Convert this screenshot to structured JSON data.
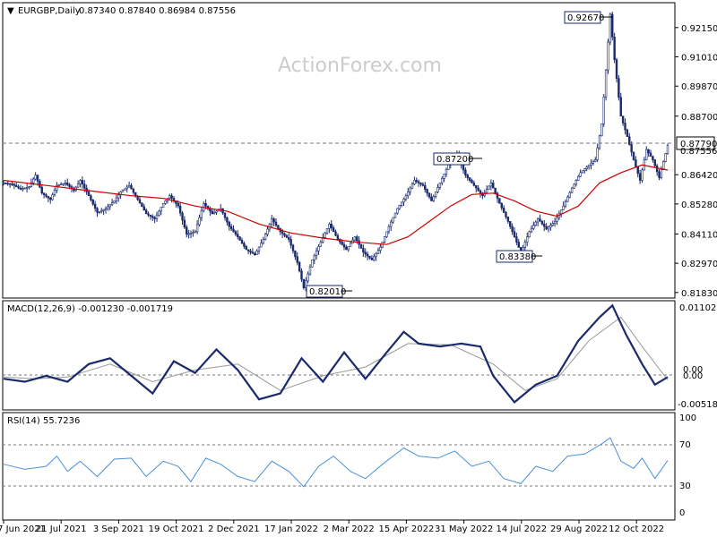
{
  "watermark": "ActionForex.com",
  "header": {
    "symbol": "EURGBP,Daily",
    "ohlc": "0.87340 0.87840 0.86984 0.87556"
  },
  "price_labels": {
    "current_line": "0.87790",
    "current_close": "0.87556"
  },
  "callouts": {
    "peak": "0.92670",
    "mid": "0.87200",
    "low1": "0.82010",
    "low2": "0.83380"
  },
  "macd": {
    "label": "MACD(12,26,9) -0.001230 -0.001719",
    "ticks": [
      "0.011023",
      "0.00",
      "0.00",
      "-0.005182"
    ]
  },
  "rsi": {
    "label": "RSI(14) 55.7236",
    "ticks": [
      "100",
      "70",
      "30",
      "0"
    ]
  },
  "colors": {
    "candles": "#1a2a6c",
    "ma": "#cc0000",
    "macd_main": "#1a2a6c",
    "macd_signal": "#999999",
    "rsi": "#4a90d9",
    "grid_dash": "#777777"
  },
  "chart_data": [
    {
      "type": "candlestick",
      "title": "EURGBP,Daily",
      "y_ticks": [
        0.9215,
        0.9101,
        0.8987,
        0.887,
        0.8642,
        0.8528,
        0.8411,
        0.8297,
        0.8183
      ],
      "y_tick_labels": [
        "0.92150",
        "0.91010",
        "0.89870",
        "0.88700",
        "0.86420",
        "0.85280",
        "0.84110",
        "0.82970",
        "0.81830"
      ],
      "ylim": [
        0.8165,
        0.9305
      ],
      "x_tick_labels": [
        "7 Jun 2021",
        "21 Jul 2021",
        "3 Sep 2021",
        "19 Oct 2021",
        "2 Dec 2021",
        "17 Jan 2022",
        "2 Mar 2022",
        "15 Apr 2022",
        "31 May 2022",
        "14 Jul 2022",
        "29 Aug 2022",
        "12 Oct 2022"
      ],
      "close_path": [
        [
          0,
          0.861
        ],
        [
          8,
          0.8605
        ],
        [
          16,
          0.8585
        ],
        [
          24,
          0.8595
        ],
        [
          30,
          0.864
        ],
        [
          36,
          0.857
        ],
        [
          44,
          0.8545
        ],
        [
          50,
          0.86
        ],
        [
          58,
          0.861
        ],
        [
          66,
          0.858
        ],
        [
          72,
          0.862
        ],
        [
          80,
          0.856
        ],
        [
          88,
          0.8495
        ],
        [
          96,
          0.851
        ],
        [
          104,
          0.854
        ],
        [
          110,
          0.8575
        ],
        [
          118,
          0.86
        ],
        [
          126,
          0.8545
        ],
        [
          134,
          0.849
        ],
        [
          142,
          0.847
        ],
        [
          150,
          0.853
        ],
        [
          156,
          0.856
        ],
        [
          164,
          0.852
        ],
        [
          172,
          0.841
        ],
        [
          180,
          0.842
        ],
        [
          188,
          0.853
        ],
        [
          196,
          0.849
        ],
        [
          204,
          0.851
        ],
        [
          212,
          0.844
        ],
        [
          220,
          0.84
        ],
        [
          228,
          0.835
        ],
        [
          236,
          0.833
        ],
        [
          244,
          0.839
        ],
        [
          252,
          0.847
        ],
        [
          260,
          0.842
        ],
        [
          268,
          0.839
        ],
        [
          276,
          0.83
        ],
        [
          282,
          0.8201
        ],
        [
          290,
          0.831
        ],
        [
          298,
          0.838
        ],
        [
          306,
          0.845
        ],
        [
          314,
          0.839
        ],
        [
          322,
          0.835
        ],
        [
          330,
          0.84
        ],
        [
          338,
          0.834
        ],
        [
          346,
          0.831
        ],
        [
          354,
          0.836
        ],
        [
          362,
          0.844
        ],
        [
          370,
          0.851
        ],
        [
          378,
          0.856
        ],
        [
          386,
          0.862
        ],
        [
          394,
          0.86
        ],
        [
          402,
          0.854
        ],
        [
          410,
          0.861
        ],
        [
          418,
          0.868
        ],
        [
          426,
          0.872
        ],
        [
          434,
          0.864
        ],
        [
          442,
          0.86
        ],
        [
          450,
          0.856
        ],
        [
          458,
          0.861
        ],
        [
          466,
          0.853
        ],
        [
          474,
          0.846
        ],
        [
          480,
          0.84
        ],
        [
          486,
          0.8338
        ],
        [
          494,
          0.842
        ],
        [
          502,
          0.847
        ],
        [
          510,
          0.843
        ],
        [
          518,
          0.846
        ],
        [
          526,
          0.852
        ],
        [
          534,
          0.859
        ],
        [
          542,
          0.865
        ],
        [
          550,
          0.868
        ],
        [
          556,
          0.87
        ],
        [
          562,
          0.884
        ],
        [
          566,
          0.905
        ],
        [
          570,
          0.9267
        ],
        [
          574,
          0.909
        ],
        [
          580,
          0.887
        ],
        [
          586,
          0.879
        ],
        [
          592,
          0.87
        ],
        [
          598,
          0.862
        ],
        [
          604,
          0.874
        ],
        [
          610,
          0.87
        ],
        [
          616,
          0.863
        ],
        [
          624,
          0.8756
        ]
      ],
      "ma_path": [
        [
          0,
          0.862
        ],
        [
          40,
          0.86
        ],
        [
          80,
          0.858
        ],
        [
          120,
          0.856
        ],
        [
          150,
          0.855
        ],
        [
          180,
          0.852
        ],
        [
          210,
          0.85
        ],
        [
          240,
          0.845
        ],
        [
          270,
          0.8415
        ],
        [
          300,
          0.8395
        ],
        [
          330,
          0.838
        ],
        [
          360,
          0.837
        ],
        [
          380,
          0.84
        ],
        [
          400,
          0.846
        ],
        [
          420,
          0.852
        ],
        [
          440,
          0.8565
        ],
        [
          460,
          0.857
        ],
        [
          480,
          0.854
        ],
        [
          500,
          0.85
        ],
        [
          520,
          0.848
        ],
        [
          540,
          0.852
        ],
        [
          560,
          0.861
        ],
        [
          580,
          0.865
        ],
        [
          600,
          0.868
        ],
        [
          624,
          0.866
        ]
      ]
    },
    {
      "type": "line",
      "title": "MACD(12,26,9) -0.001230 -0.001719",
      "ylim": [
        -0.0065,
        0.0115
      ],
      "series": [
        {
          "values": [
            [
              0,
              -0.0015
            ],
            [
              20,
              -0.002
            ],
            [
              40,
              -0.001
            ],
            [
              60,
              -0.002
            ],
            [
              80,
              0.001
            ],
            [
              100,
              0.002
            ],
            [
              120,
              -0.001
            ],
            [
              140,
              -0.004
            ],
            [
              160,
              0.0015
            ],
            [
              180,
              -0.0005
            ],
            [
              200,
              0.0035
            ],
            [
              220,
              0.0
            ],
            [
              240,
              -0.005
            ],
            [
              260,
              -0.004
            ],
            [
              280,
              0.002
            ],
            [
              300,
              -0.002
            ],
            [
              320,
              0.003
            ],
            [
              340,
              -0.0015
            ],
            [
              360,
              0.003
            ],
            [
              376,
              0.0065
            ],
            [
              390,
              0.0045
            ],
            [
              410,
              0.004
            ],
            [
              430,
              0.0045
            ],
            [
              448,
              0.004
            ],
            [
              460,
              -0.001
            ],
            [
              480,
              -0.0055
            ],
            [
              500,
              -0.0025
            ],
            [
              520,
              -0.001
            ],
            [
              540,
              0.005
            ],
            [
              560,
              0.009
            ],
            [
              572,
              0.011
            ],
            [
              585,
              0.006
            ],
            [
              600,
              0.001
            ],
            [
              612,
              -0.0025
            ],
            [
              624,
              -0.0012
            ]
          ]
        },
        {
          "values": [
            [
              0,
              -0.0012
            ],
            [
              30,
              -0.0015
            ],
            [
              60,
              -0.0012
            ],
            [
              100,
              0.001
            ],
            [
              140,
              -0.002
            ],
            [
              180,
              0.0
            ],
            [
              220,
              0.001
            ],
            [
              260,
              -0.0035
            ],
            [
              300,
              -0.001
            ],
            [
              340,
              0.0005
            ],
            [
              380,
              0.0045
            ],
            [
              420,
              0.0043
            ],
            [
              460,
              0.001
            ],
            [
              490,
              -0.0035
            ],
            [
              520,
              -0.0015
            ],
            [
              550,
              0.005
            ],
            [
              580,
              0.009
            ],
            [
              600,
              0.004
            ],
            [
              624,
              -0.0017
            ]
          ]
        }
      ]
    },
    {
      "type": "line",
      "title": "RSI(14) 55.7236",
      "ylim": [
        0,
        100
      ],
      "y_ticks": [
        100,
        70,
        30,
        0
      ],
      "levels": [
        70,
        30
      ],
      "series": [
        {
          "values": [
            [
              0,
              52
            ],
            [
              20,
              47
            ],
            [
              40,
              50
            ],
            [
              50,
              60
            ],
            [
              60,
              45
            ],
            [
              72,
              55
            ],
            [
              88,
              40
            ],
            [
              104,
              57
            ],
            [
              120,
              58
            ],
            [
              134,
              40
            ],
            [
              150,
              55
            ],
            [
              164,
              50
            ],
            [
              176,
              35
            ],
            [
              190,
              58
            ],
            [
              204,
              52
            ],
            [
              220,
              40
            ],
            [
              236,
              35
            ],
            [
              252,
              55
            ],
            [
              268,
              45
            ],
            [
              282,
              30
            ],
            [
              296,
              50
            ],
            [
              310,
              60
            ],
            [
              326,
              45
            ],
            [
              340,
              38
            ],
            [
              356,
              52
            ],
            [
              376,
              68
            ],
            [
              390,
              60
            ],
            [
              408,
              58
            ],
            [
              424,
              65
            ],
            [
              440,
              50
            ],
            [
              456,
              55
            ],
            [
              470,
              38
            ],
            [
              486,
              33
            ],
            [
              500,
              50
            ],
            [
              516,
              45
            ],
            [
              530,
              60
            ],
            [
              546,
              62
            ],
            [
              562,
              72
            ],
            [
              570,
              78
            ],
            [
              580,
              55
            ],
            [
              592,
              48
            ],
            [
              600,
              58
            ],
            [
              612,
              38
            ],
            [
              624,
              55.7
            ]
          ]
        }
      ]
    }
  ]
}
